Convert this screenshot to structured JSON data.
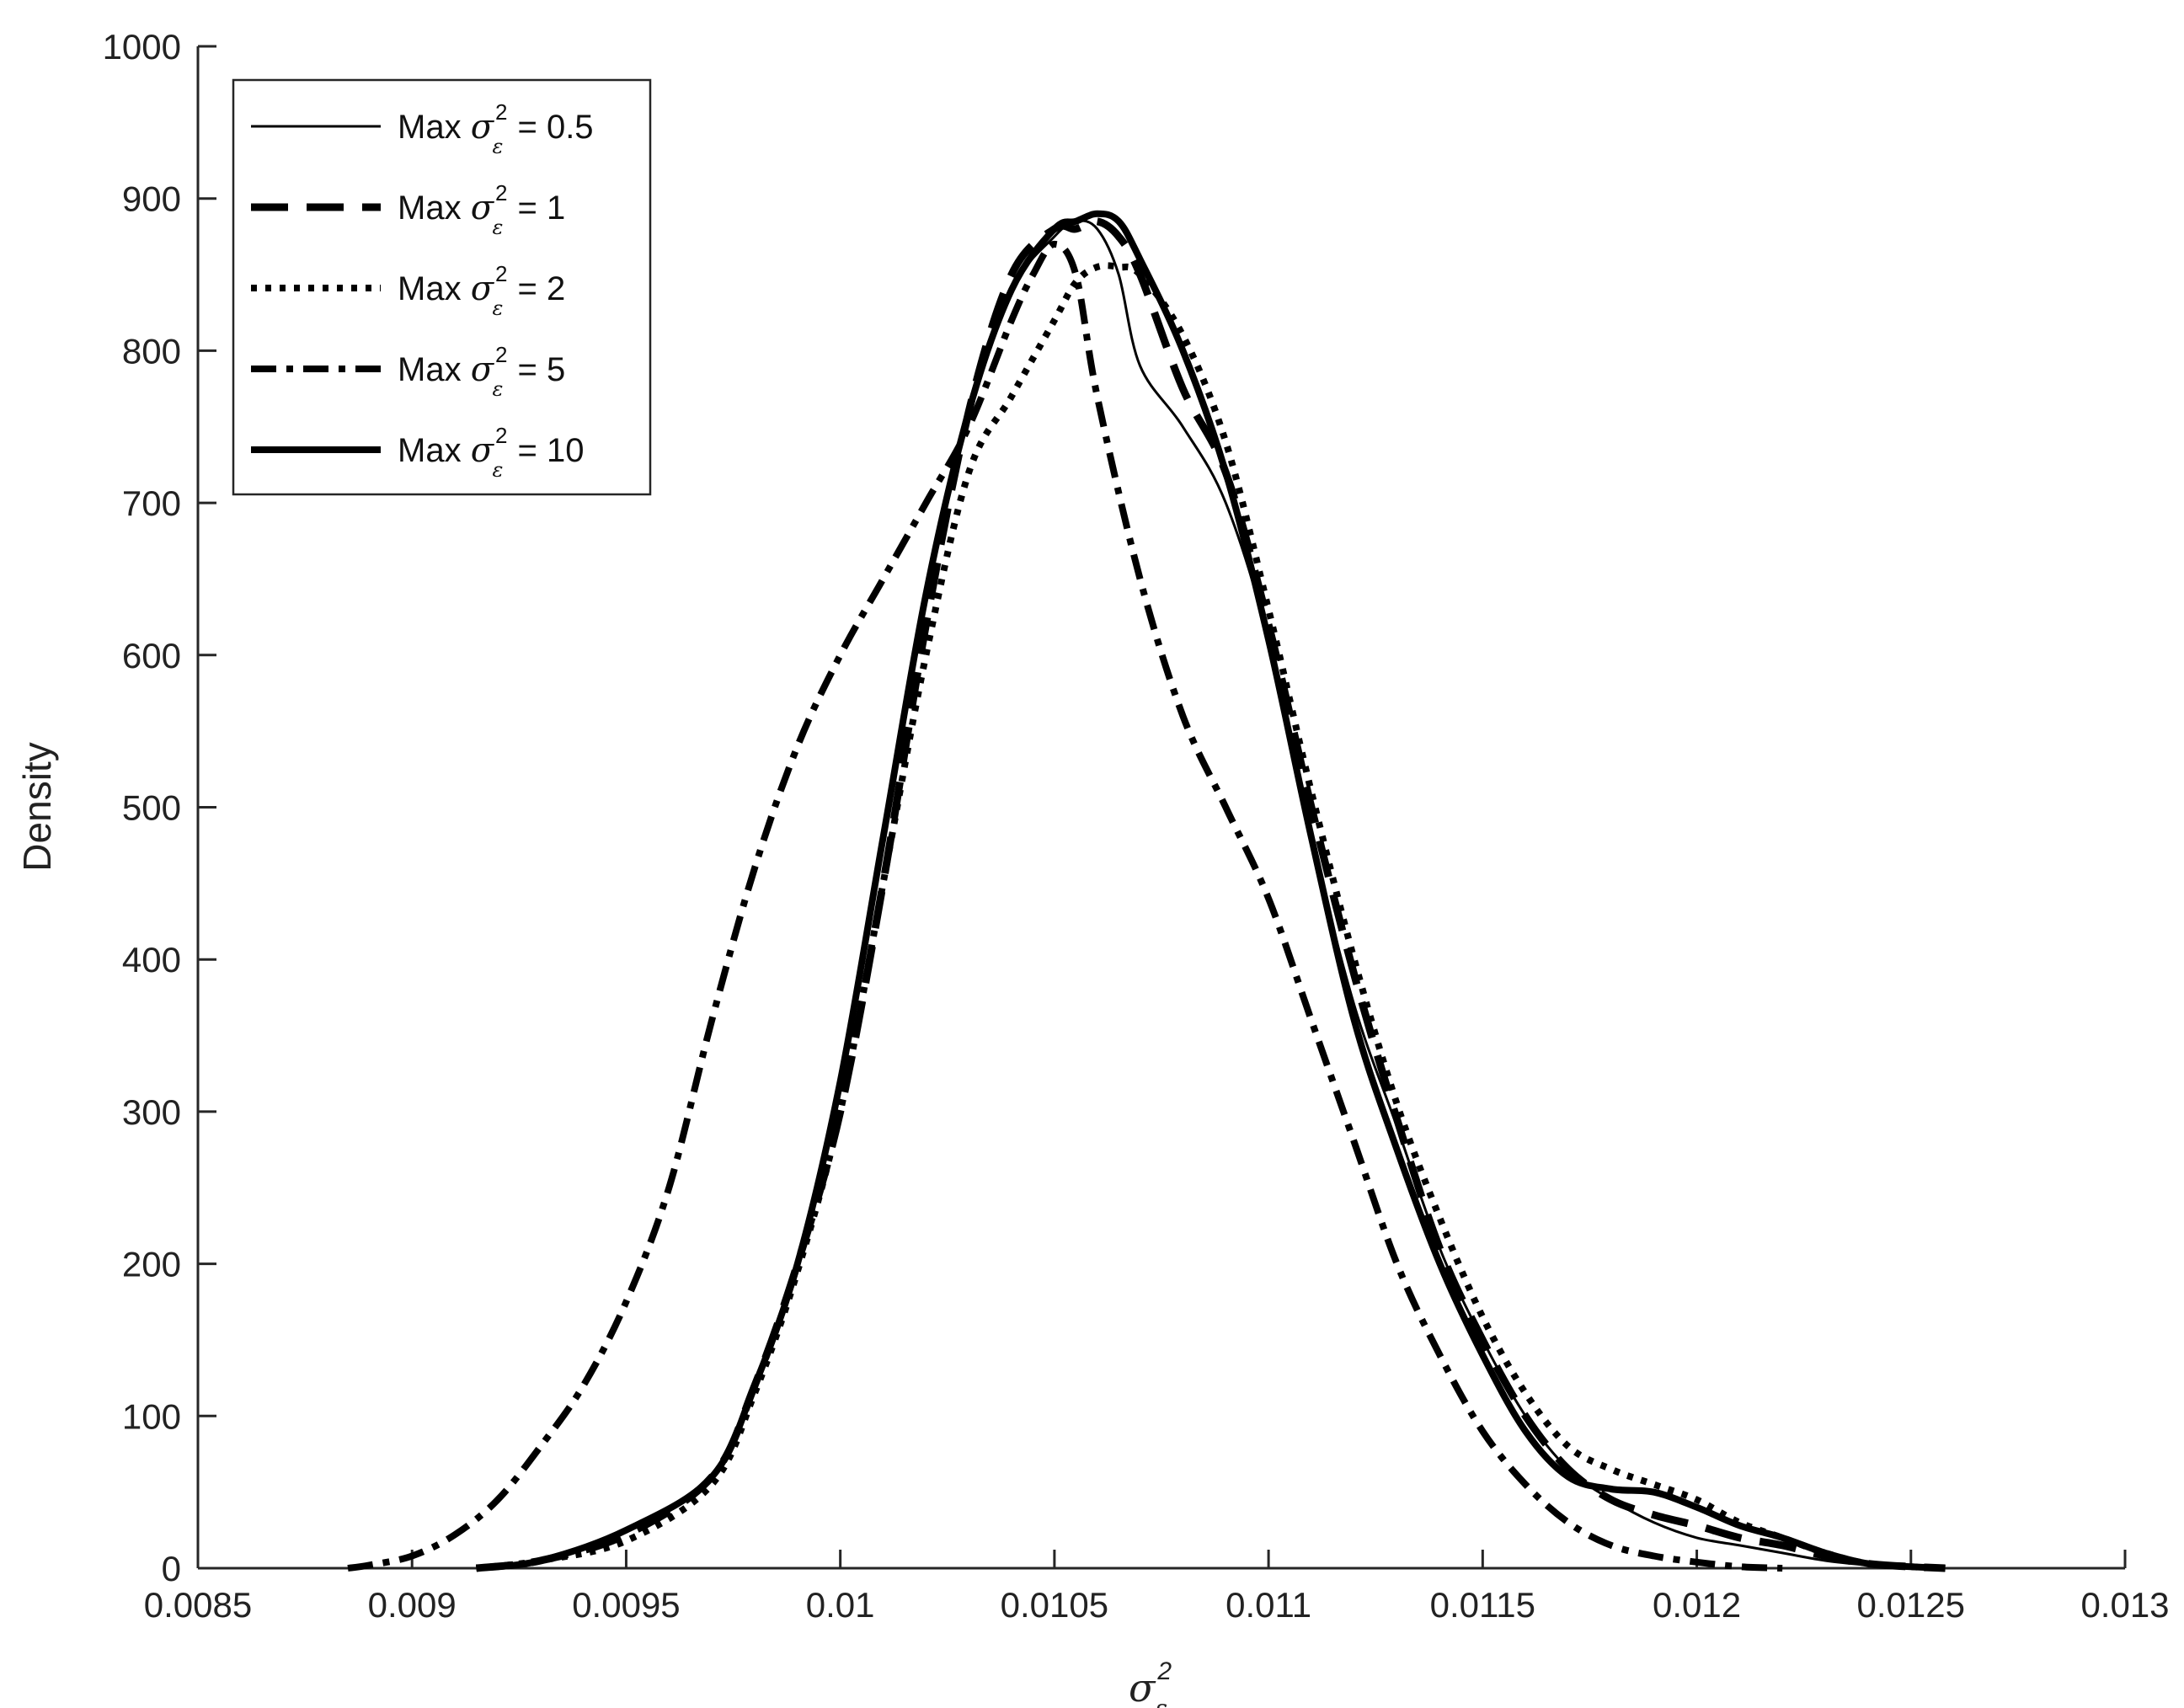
{
  "chart_data": {
    "type": "line",
    "title": "",
    "xlabel": "σ²ε",
    "xlabel_parts": {
      "symbol": "σ",
      "sup": "2",
      "sub": "ε"
    },
    "ylabel": "Density",
    "xlim": [
      0.0085,
      0.013
    ],
    "ylim": [
      0,
      1000
    ],
    "x_ticks": [
      0.0085,
      0.009,
      0.0095,
      0.01,
      0.0105,
      0.011,
      0.0115,
      0.012,
      0.0125,
      0.013
    ],
    "x_tick_labels": [
      "0.0085",
      "0.009",
      "0.0095",
      "0.01",
      "0.0105",
      "0.011",
      "0.0115",
      "0.012",
      "0.0125",
      "0.013"
    ],
    "y_ticks": [
      0,
      100,
      200,
      300,
      400,
      500,
      600,
      700,
      800,
      900,
      1000
    ],
    "y_tick_labels": [
      "0",
      "100",
      "200",
      "300",
      "400",
      "500",
      "600",
      "700",
      "800",
      "900",
      "1000"
    ],
    "grid": false,
    "legend_placement": "top-left",
    "line_color": "#000000",
    "series": [
      {
        "name": "Max σ²ε = 0.5",
        "legend": {
          "prefix": "Max ",
          "symbol": "σ",
          "sup": "2",
          "sub": "ε",
          "suffix": " = 0.5"
        },
        "style": "solid-thin",
        "x": [
          0.00915,
          0.0093,
          0.0095,
          0.0097,
          0.0098,
          0.0099,
          0.01,
          0.0101,
          0.0102,
          0.0103,
          0.0104,
          0.0105,
          0.01055,
          0.0106,
          0.01065,
          0.0107,
          0.0108,
          0.0109,
          0.011,
          0.0111,
          0.0112,
          0.0113,
          0.0114,
          0.0115,
          0.0116,
          0.0117,
          0.0118,
          0.0119,
          0.012,
          0.0121,
          0.0122,
          0.0123,
          0.0124,
          0.0125
        ],
        "y": [
          0,
          5,
          25,
          60,
          120,
          200,
          320,
          480,
          640,
          760,
          840,
          875,
          885,
          880,
          850,
          790,
          750,
          700,
          610,
          480,
          370,
          290,
          210,
          150,
          100,
          65,
          45,
          30,
          20,
          15,
          10,
          5,
          2,
          0
        ]
      },
      {
        "name": "Max σ²ε = 1",
        "legend": {
          "prefix": "Max ",
          "symbol": "σ",
          "sup": "2",
          "sub": "ε",
          "suffix": " = 1"
        },
        "style": "long-dash",
        "x": [
          0.00915,
          0.0093,
          0.0095,
          0.0097,
          0.0098,
          0.0099,
          0.01,
          0.0101,
          0.0102,
          0.0103,
          0.0104,
          0.0105,
          0.01055,
          0.0106,
          0.01065,
          0.0107,
          0.0108,
          0.0109,
          0.011,
          0.0111,
          0.0112,
          0.0113,
          0.0114,
          0.0115,
          0.0116,
          0.0117,
          0.0118,
          0.0119,
          0.012,
          0.0121,
          0.0122,
          0.0123,
          0.0124,
          0.0125,
          0.01258
        ],
        "y": [
          0,
          5,
          22,
          60,
          120,
          200,
          300,
          450,
          620,
          760,
          850,
          880,
          880,
          885,
          875,
          850,
          775,
          720,
          620,
          500,
          390,
          295,
          210,
          150,
          100,
          65,
          45,
          35,
          28,
          20,
          15,
          8,
          3,
          1,
          0
        ]
      },
      {
        "name": "Max σ²ε = 2",
        "legend": {
          "prefix": "Max ",
          "symbol": "σ",
          "sup": "2",
          "sub": "ε",
          "suffix": " = 2"
        },
        "style": "dotted",
        "x": [
          0.00915,
          0.0093,
          0.0095,
          0.0097,
          0.0098,
          0.0099,
          0.01,
          0.0101,
          0.0102,
          0.0103,
          0.0104,
          0.0105,
          0.01055,
          0.0106,
          0.01065,
          0.0107,
          0.0108,
          0.0109,
          0.011,
          0.0111,
          0.0112,
          0.0113,
          0.0114,
          0.0115,
          0.0116,
          0.0117,
          0.0118,
          0.0119,
          0.012,
          0.0121,
          0.0122,
          0.0123,
          0.0124,
          0.0125,
          0.01258
        ],
        "y": [
          0,
          5,
          18,
          55,
          115,
          195,
          300,
          450,
          600,
          720,
          770,
          820,
          845,
          855,
          855,
          850,
          810,
          740,
          630,
          510,
          400,
          305,
          230,
          165,
          115,
          80,
          65,
          55,
          45,
          30,
          20,
          10,
          3,
          1,
          0
        ]
      },
      {
        "name": "Max σ²ε = 5",
        "legend": {
          "prefix": "Max ",
          "symbol": "σ",
          "sup": "2",
          "sub": "ε",
          "suffix": " = 5"
        },
        "style": "dash-dot",
        "x": [
          0.00885,
          0.0089,
          0.009,
          0.0091,
          0.0092,
          0.0093,
          0.0094,
          0.0095,
          0.0096,
          0.0097,
          0.0098,
          0.0099,
          0.01,
          0.0101,
          0.0102,
          0.0103,
          0.0104,
          0.01045,
          0.0105,
          0.01055,
          0.0106,
          0.0107,
          0.0108,
          0.0109,
          0.011,
          0.0111,
          0.0112,
          0.0113,
          0.0114,
          0.0115,
          0.0116,
          0.0117,
          0.0118,
          0.0119,
          0.012,
          0.0121,
          0.0122
        ],
        "y": [
          0,
          2,
          8,
          22,
          45,
          80,
          120,
          175,
          250,
          360,
          460,
          540,
          600,
          650,
          700,
          750,
          820,
          850,
          870,
          850,
          770,
          650,
          560,
          500,
          440,
          360,
          280,
          200,
          140,
          90,
          55,
          30,
          15,
          8,
          4,
          1,
          0
        ]
      },
      {
        "name": "Max σ²ε = 10",
        "legend": {
          "prefix": "Max ",
          "symbol": "σ",
          "sup": "2",
          "sub": "ε",
          "suffix": " = 10"
        },
        "style": "solid-thick",
        "x": [
          0.00915,
          0.0093,
          0.0095,
          0.0097,
          0.0098,
          0.0099,
          0.01,
          0.0101,
          0.0102,
          0.0103,
          0.0104,
          0.0105,
          0.01055,
          0.0106,
          0.01065,
          0.0107,
          0.0108,
          0.0109,
          0.011,
          0.0111,
          0.0112,
          0.0113,
          0.0114,
          0.0115,
          0.0116,
          0.0117,
          0.0118,
          0.0119,
          0.012,
          0.0121,
          0.0122,
          0.0123,
          0.0124,
          0.0125,
          0.01258
        ],
        "y": [
          0,
          5,
          25,
          60,
          120,
          200,
          320,
          480,
          640,
          760,
          840,
          880,
          885,
          890,
          885,
          860,
          800,
          720,
          610,
          480,
          360,
          275,
          200,
          140,
          90,
          60,
          52,
          50,
          40,
          28,
          20,
          10,
          3,
          1,
          0
        ]
      }
    ]
  }
}
